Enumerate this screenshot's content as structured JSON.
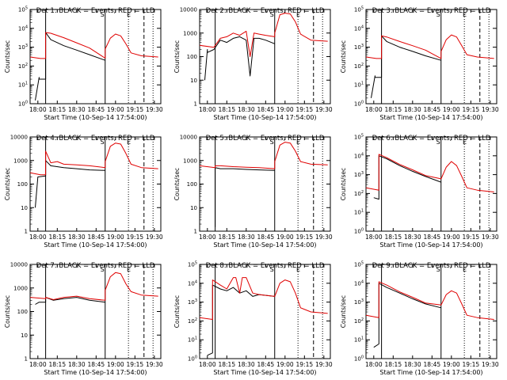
{
  "figure": {
    "x_axis_title": "Start Time (10-Sep-14 17:54:00)",
    "y_axis_title": "Counts/sec"
  },
  "colors": {
    "events": "#000000",
    "lld": "#e00000",
    "axes": "#000000"
  },
  "chart_data": [
    {
      "type": "line",
      "title": "Det 1: BLACK = Events, RED = LLD",
      "xlabel": "Start Time (10-Sep-14 17:54:00)",
      "ylabel": "Counts/sec",
      "x_ticks": [
        "18:00",
        "18:15",
        "18:30",
        "18:45",
        "19:00",
        "19:15",
        "19:30"
      ],
      "xlim": [
        "17:54",
        "19:35"
      ],
      "y_scale": "log",
      "ylim": [
        1,
        100000
      ],
      "y_ticks": [
        "10^0",
        "10^1",
        "10^2",
        "10^3",
        "10^4",
        "10^5"
      ],
      "markers": [
        "S",
        "E"
      ],
      "series": [
        {
          "name": "BLACK = Events",
          "color": "#000000",
          "x": [
            "17:58",
            "18:01",
            "18:01",
            "18:06",
            "18:06",
            "18:10",
            "18:20",
            "18:30",
            "18:40",
            "18:52",
            "18:52"
          ],
          "y": [
            1.5,
            25,
            20,
            20,
            6000,
            2500,
            1200,
            700,
            400,
            200,
            200
          ]
        },
        {
          "name": "RED = LLD",
          "color": "#e00000",
          "x": [
            "17:54",
            "18:02",
            "18:06",
            "18:06",
            "18:10",
            "18:20",
            "18:30",
            "18:40",
            "18:52",
            "18:52",
            "18:56",
            "19:00",
            "19:04",
            "19:08",
            "19:12",
            "19:20",
            "19:33"
          ],
          "y": [
            300,
            250,
            250,
            6000,
            5500,
            3200,
            1700,
            900,
            260,
            800,
            3000,
            5000,
            4000,
            1500,
            500,
            350,
            300
          ]
        }
      ]
    },
    {
      "type": "line",
      "title": "Det 2: BLACK = Events, RED = LLD",
      "xlabel": "Start Time (10-Sep-14 17:54:00)",
      "ylabel": "Counts/sec",
      "x_ticks": [
        "18:00",
        "18:15",
        "18:30",
        "18:45",
        "19:00",
        "19:15",
        "19:30"
      ],
      "xlim": [
        "17:54",
        "19:35"
      ],
      "y_scale": "log",
      "ylim": [
        1,
        10000
      ],
      "y_ticks": [
        "1",
        "10",
        "100",
        "1000",
        "10000"
      ],
      "markers": [
        "S",
        "E"
      ],
      "series": [
        {
          "name": "BLACK = Events",
          "color": "#000000",
          "x": [
            "17:58",
            "18:00",
            "18:00",
            "18:05",
            "18:10",
            "18:15",
            "18:20",
            "18:25",
            "18:30",
            "18:33",
            "18:36",
            "18:40",
            "18:45",
            "18:52"
          ],
          "y": [
            10,
            200,
            150,
            200,
            500,
            400,
            600,
            700,
            500,
            15,
            600,
            600,
            500,
            350
          ]
        },
        {
          "name": "RED = LLD",
          "color": "#e00000",
          "x": [
            "17:54",
            "18:05",
            "18:10",
            "18:15",
            "18:20",
            "18:25",
            "18:30",
            "18:33",
            "18:36",
            "18:40",
            "18:45",
            "18:52",
            "18:52",
            "18:56",
            "19:00",
            "19:04",
            "19:08",
            "19:12",
            "19:20",
            "19:33"
          ],
          "y": [
            300,
            250,
            600,
            700,
            1000,
            800,
            1200,
            100,
            1000,
            900,
            800,
            700,
            1000,
            6000,
            7000,
            6500,
            3000,
            900,
            500,
            450
          ]
        }
      ]
    },
    {
      "type": "line",
      "title": "Det 3: BLACK = Events, RED = LLD",
      "xlabel": "Start Time (10-Sep-14 17:54:00)",
      "ylabel": "Counts/sec",
      "x_ticks": [
        "18:00",
        "18:15",
        "18:30",
        "18:45",
        "19:00",
        "19:15",
        "19:30"
      ],
      "xlim": [
        "17:54",
        "19:35"
      ],
      "y_scale": "log",
      "ylim": [
        1,
        100000
      ],
      "y_ticks": [
        "10^0",
        "10^1",
        "10^2",
        "10^3",
        "10^4",
        "10^5"
      ],
      "markers": [
        "S",
        "E"
      ],
      "series": [
        {
          "name": "BLACK = Events",
          "color": "#000000",
          "x": [
            "17:58",
            "18:01",
            "18:01",
            "18:06",
            "18:06",
            "18:10",
            "18:20",
            "18:30",
            "18:40",
            "18:52",
            "18:52"
          ],
          "y": [
            2,
            30,
            25,
            25,
            4000,
            2000,
            1000,
            600,
            350,
            200,
            200
          ]
        },
        {
          "name": "RED = LLD",
          "color": "#e00000",
          "x": [
            "17:54",
            "18:02",
            "18:06",
            "18:06",
            "18:10",
            "18:20",
            "18:30",
            "18:40",
            "18:52",
            "18:52",
            "18:56",
            "19:00",
            "19:04",
            "19:08",
            "19:12",
            "19:20",
            "19:33"
          ],
          "y": [
            300,
            250,
            250,
            4000,
            3500,
            2000,
            1200,
            700,
            250,
            600,
            2500,
            4500,
            3500,
            1200,
            400,
            300,
            250
          ]
        }
      ]
    },
    {
      "type": "line",
      "title": "Det 4: BLACK = Events, RED = LLD",
      "xlabel": "Start Time (10-Sep-14 17:54:00)",
      "ylabel": "Counts/sec",
      "x_ticks": [
        "18:00",
        "18:15",
        "18:30",
        "18:45",
        "19:00",
        "19:15",
        "19:30"
      ],
      "xlim": [
        "17:54",
        "19:35"
      ],
      "y_scale": "log",
      "ylim": [
        1,
        10000
      ],
      "y_ticks": [
        "1",
        "10",
        "100",
        "1000",
        "10000"
      ],
      "markers": [
        "S",
        "E"
      ],
      "series": [
        {
          "name": "BLACK = Events",
          "color": "#000000",
          "x": [
            "17:58",
            "18:00",
            "18:00",
            "18:06",
            "18:06",
            "18:10",
            "18:20",
            "18:30",
            "18:40",
            "18:52"
          ],
          "y": [
            10,
            200,
            200,
            220,
            1000,
            600,
            500,
            450,
            400,
            380
          ]
        },
        {
          "name": "RED = LLD",
          "color": "#e00000",
          "x": [
            "17:54",
            "18:02",
            "18:06",
            "18:06",
            "18:10",
            "18:15",
            "18:20",
            "18:30",
            "18:40",
            "18:52",
            "18:52",
            "18:56",
            "19:00",
            "19:04",
            "19:08",
            "19:12",
            "19:20",
            "19:33"
          ],
          "y": [
            300,
            250,
            250,
            2500,
            800,
            900,
            700,
            650,
            600,
            500,
            900,
            4000,
            5500,
            5000,
            2000,
            700,
            500,
            450
          ]
        }
      ]
    },
    {
      "type": "line",
      "title": "Det 5: BLACK = Events, RED = LLD",
      "xlabel": "Start Time (10-Sep-14 17:54:00)",
      "ylabel": "Counts/sec",
      "x_ticks": [
        "18:00",
        "18:15",
        "18:30",
        "18:45",
        "19:00",
        "19:15",
        "19:30"
      ],
      "xlim": [
        "17:54",
        "19:35"
      ],
      "y_scale": "log",
      "ylim": [
        1,
        10000
      ],
      "y_ticks": [
        "1",
        "10",
        "100",
        "1000",
        "10000"
      ],
      "markers": [
        "S",
        "E"
      ],
      "series": [
        {
          "name": "BLACK = Events",
          "color": "#000000",
          "x": [
            "18:06",
            "18:06",
            "18:10",
            "18:20",
            "18:30",
            "18:40",
            "18:52"
          ],
          "y": [
            1.5,
            500,
            450,
            450,
            420,
            400,
            380
          ]
        },
        {
          "name": "RED = LLD",
          "color": "#e00000",
          "x": [
            "17:54",
            "18:06",
            "18:06",
            "18:10",
            "18:20",
            "18:30",
            "18:40",
            "18:52",
            "18:52",
            "18:56",
            "19:00",
            "19:04",
            "19:08",
            "19:12",
            "19:20",
            "19:33"
          ],
          "y": [
            600,
            500,
            600,
            600,
            550,
            520,
            500,
            450,
            900,
            4500,
            6000,
            5500,
            2500,
            900,
            700,
            650
          ]
        }
      ]
    },
    {
      "type": "line",
      "title": "Det 6: BLACK = Events, RED = LLD",
      "xlabel": "Start Time (10-Sep-14 17:54:00)",
      "ylabel": "Counts/sec",
      "x_ticks": [
        "18:00",
        "18:15",
        "18:30",
        "18:45",
        "19:00",
        "19:15",
        "19:30"
      ],
      "xlim": [
        "17:54",
        "19:35"
      ],
      "y_scale": "log",
      "ylim": [
        1,
        100000
      ],
      "y_ticks": [
        "10^0",
        "10^1",
        "10^2",
        "10^3",
        "10^4",
        "10^5"
      ],
      "markers": [
        "S",
        "E"
      ],
      "series": [
        {
          "name": "BLACK = Events",
          "color": "#000000",
          "x": [
            "18:00",
            "18:04",
            "18:04",
            "18:10",
            "18:20",
            "18:30",
            "18:40",
            "18:52"
          ],
          "y": [
            60,
            50,
            10000,
            7000,
            3000,
            1500,
            800,
            400
          ]
        },
        {
          "name": "RED = LLD",
          "color": "#e00000",
          "x": [
            "17:54",
            "18:04",
            "18:04",
            "18:10",
            "18:20",
            "18:30",
            "18:40",
            "18:52",
            "18:56",
            "19:00",
            "19:04",
            "19:08",
            "19:12",
            "19:20",
            "19:33"
          ],
          "y": [
            200,
            150,
            12000,
            8000,
            3500,
            1800,
            900,
            600,
            2500,
            5000,
            3000,
            800,
            200,
            150,
            120
          ]
        }
      ]
    },
    {
      "type": "line",
      "title": "Det 7: BLACK = Events, RED = LLD",
      "xlabel": "Start Time (10-Sep-14 17:54:00)",
      "ylabel": "Counts/sec",
      "x_ticks": [
        "18:00",
        "18:15",
        "18:30",
        "18:45",
        "19:00",
        "19:15",
        "19:30"
      ],
      "xlim": [
        "17:54",
        "19:35"
      ],
      "y_scale": "log",
      "ylim": [
        1,
        10000
      ],
      "y_ticks": [
        "1",
        "10",
        "100",
        "1000",
        "10000"
      ],
      "markers": [
        "S",
        "E"
      ],
      "series": [
        {
          "name": "BLACK = Events",
          "color": "#000000",
          "x": [
            "17:58",
            "18:01",
            "18:01",
            "18:06",
            "18:06",
            "18:12",
            "18:20",
            "18:30",
            "18:40",
            "18:52"
          ],
          "y": [
            200,
            250,
            250,
            250,
            400,
            300,
            350,
            400,
            300,
            250
          ]
        },
        {
          "name": "RED = LLD",
          "color": "#e00000",
          "x": [
            "17:54",
            "18:06",
            "18:06",
            "18:12",
            "18:20",
            "18:30",
            "18:40",
            "18:52",
            "18:52",
            "18:56",
            "19:00",
            "19:04",
            "19:08",
            "19:12",
            "19:20",
            "19:33"
          ],
          "y": [
            400,
            350,
            400,
            320,
            400,
            450,
            350,
            300,
            800,
            3000,
            4500,
            4000,
            1500,
            700,
            500,
            450
          ]
        }
      ]
    },
    {
      "type": "line",
      "title": "Det 8: BLACK = Events, RED = LLD",
      "xlabel": "Start Time (10-Sep-14 17:54:00)",
      "ylabel": "Counts/sec",
      "x_ticks": [
        "18:00",
        "18:15",
        "18:30",
        "18:45",
        "19:00",
        "19:15",
        "19:30"
      ],
      "xlim": [
        "17:54",
        "19:35"
      ],
      "y_scale": "log",
      "ylim": [
        1,
        100000
      ],
      "y_ticks": [
        "10^0",
        "10^1",
        "10^2",
        "10^3",
        "10^4",
        "10^5"
      ],
      "markers": [
        "S",
        "E"
      ],
      "series": [
        {
          "name": "BLACK = Events",
          "color": "#000000",
          "x": [
            "18:00",
            "18:04",
            "18:04",
            "18:10",
            "18:15",
            "18:20",
            "18:25",
            "18:30",
            "18:35",
            "18:40",
            "18:52"
          ],
          "y": [
            1.5,
            2,
            8000,
            5000,
            4000,
            6000,
            3000,
            4000,
            2000,
            2500,
            2000
          ]
        },
        {
          "name": "RED = LLD",
          "color": "#e00000",
          "x": [
            "17:54",
            "18:04",
            "18:04",
            "18:10",
            "18:15",
            "18:20",
            "18:22",
            "18:25",
            "18:27",
            "18:30",
            "18:35",
            "18:40",
            "18:52",
            "18:56",
            "19:00",
            "19:04",
            "19:08",
            "19:12",
            "19:20",
            "19:33"
          ],
          "y": [
            150,
            120,
            15000,
            8000,
            5000,
            20000,
            20000,
            3000,
            20000,
            20000,
            3000,
            2500,
            2000,
            10000,
            15000,
            12000,
            3000,
            500,
            300,
            250
          ]
        }
      ]
    },
    {
      "type": "line",
      "title": "Det 9: BLACK = Events, RED = LLD",
      "xlabel": "Start Time (10-Sep-14 17:54:00)",
      "ylabel": "Counts/sec",
      "x_ticks": [
        "18:00",
        "18:15",
        "18:30",
        "18:45",
        "19:00",
        "19:15",
        "19:30"
      ],
      "xlim": [
        "17:54",
        "19:35"
      ],
      "y_scale": "log",
      "ylim": [
        1,
        100000
      ],
      "y_ticks": [
        "10^0",
        "10^1",
        "10^2",
        "10^3",
        "10^4",
        "10^5"
      ],
      "markers": [
        "S",
        "E"
      ],
      "series": [
        {
          "name": "BLACK = Events",
          "color": "#000000",
          "x": [
            "18:00",
            "18:04",
            "18:04",
            "18:10",
            "18:20",
            "18:30",
            "18:40",
            "18:52"
          ],
          "y": [
            4,
            6,
            10000,
            6000,
            3000,
            1500,
            800,
            500
          ]
        },
        {
          "name": "RED = LLD",
          "color": "#e00000",
          "x": [
            "17:54",
            "18:04",
            "18:04",
            "18:10",
            "18:20",
            "18:30",
            "18:40",
            "18:52",
            "18:56",
            "19:00",
            "19:04",
            "19:08",
            "19:12",
            "19:20",
            "19:33"
          ],
          "y": [
            200,
            150,
            12000,
            8000,
            3500,
            1800,
            900,
            700,
            2500,
            4000,
            3000,
            800,
            200,
            150,
            120
          ]
        }
      ]
    }
  ]
}
